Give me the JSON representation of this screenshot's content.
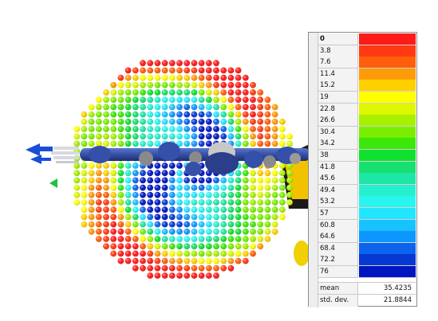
{
  "legend": {
    "entries": [
      {
        "label": "0",
        "color": "#ff1a1a"
      },
      {
        "label": "3.8",
        "color": "#ff3a12"
      },
      {
        "label": "7.6",
        "color": "#ff5e0a"
      },
      {
        "label": "11.4",
        "color": "#ff9a08"
      },
      {
        "label": "15.2",
        "color": "#ffd000"
      },
      {
        "label": "19",
        "color": "#ffff00"
      },
      {
        "label": "22.8",
        "color": "#ddf700"
      },
      {
        "label": "26.6",
        "color": "#a7f000"
      },
      {
        "label": "30.4",
        "color": "#7aee00"
      },
      {
        "label": "34.2",
        "color": "#3be80a"
      },
      {
        "label": "38",
        "color": "#10e030"
      },
      {
        "label": "41.8",
        "color": "#18e070"
      },
      {
        "label": "45.6",
        "color": "#1ee6a5"
      },
      {
        "label": "49.4",
        "color": "#24f0cf"
      },
      {
        "label": "53.2",
        "color": "#28f5ee"
      },
      {
        "label": "57",
        "color": "#22e5ff"
      },
      {
        "label": "60.8",
        "color": "#18c2ff"
      },
      {
        "label": "64.6",
        "color": "#0e96ff"
      },
      {
        "label": "68.4",
        "color": "#0a64ee"
      },
      {
        "label": "72.2",
        "color": "#0638d4"
      },
      {
        "label": "76",
        "color": "#0016c0"
      }
    ]
  },
  "stats": [
    {
      "name": "mean",
      "value": "35.4235"
    },
    {
      "name": "std. dev.",
      "value": "21.8844"
    }
  ]
}
